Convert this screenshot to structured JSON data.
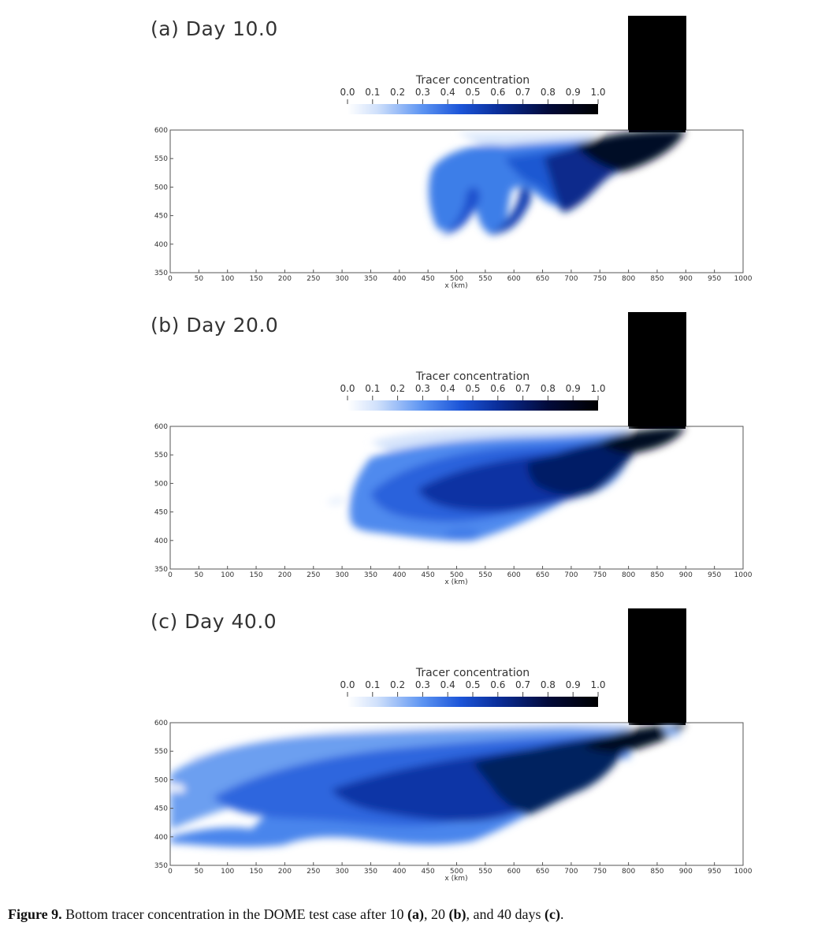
{
  "figure": {
    "caption": {
      "label": "Figure 9.",
      "text_1": "Bottom tracer concentration in the DOME test case after 10 ",
      "a": "(a)",
      "text_2": ", 20 ",
      "b": "(b)",
      "text_3": ", and 40 days ",
      "c": "(c)",
      "text_4": "."
    },
    "panels": [
      {
        "id": "a",
        "title": "(a) Day 10.0"
      },
      {
        "id": "b",
        "title": "(b) Day 20.0"
      },
      {
        "id": "c",
        "title": "(c) Day 40.0"
      }
    ],
    "colorbar": {
      "title": "Tracer concentration",
      "ticks": [
        "0.0",
        "0.1",
        "0.2",
        "0.3",
        "0.4",
        "0.5",
        "0.6",
        "0.7",
        "0.8",
        "0.9",
        "1.0"
      ],
      "colors": [
        "#ffffff",
        "#2d6ff0",
        "#000000"
      ]
    },
    "axes": {
      "x_label": "x (km)",
      "x_ticks": [
        "0",
        "50",
        "100",
        "150",
        "200",
        "250",
        "300",
        "350",
        "400",
        "450",
        "500",
        "550",
        "600",
        "650",
        "700",
        "750",
        "800",
        "850",
        "900",
        "950",
        "1000"
      ],
      "y_ticks": [
        "350",
        "400",
        "450",
        "500",
        "550",
        "600"
      ],
      "x_range": [
        0,
        1000
      ],
      "y_range": [
        350,
        600
      ],
      "embayment_x": [
        800,
        900
      ]
    }
  }
}
